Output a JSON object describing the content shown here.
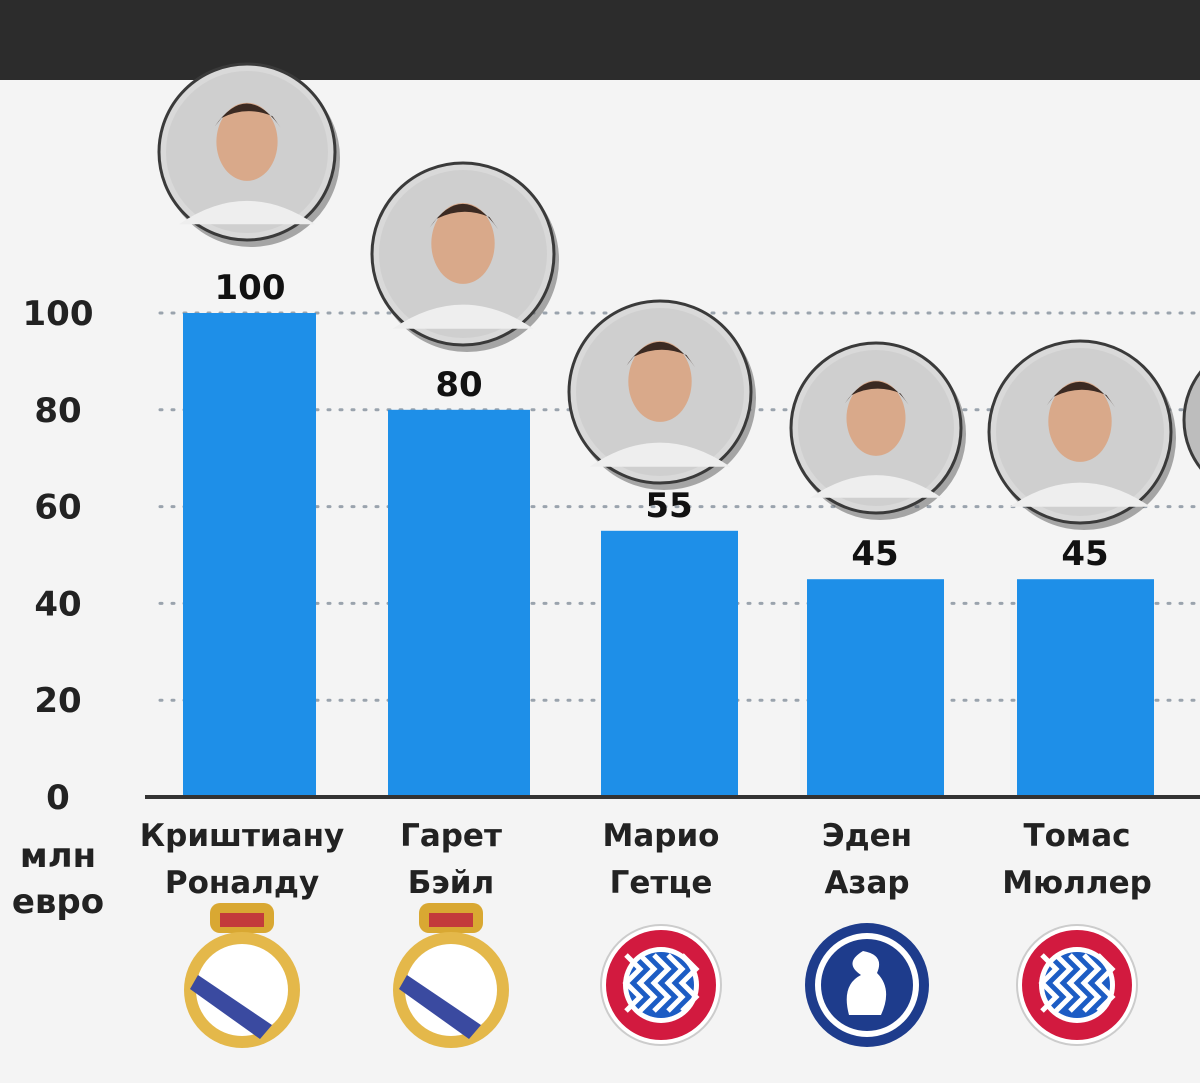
{
  "unit": {
    "line1": "млн",
    "line2": "евро"
  },
  "chart_data": {
    "type": "bar",
    "categories": [
      [
        "Криштиану",
        "Роналду"
      ],
      [
        "Гарет",
        "Бэйл"
      ],
      [
        "Марио",
        "Гетце"
      ],
      [
        "Эден",
        "Азар"
      ],
      [
        "Томас",
        "Мюллер"
      ]
    ],
    "values": [
      100,
      80,
      55,
      45,
      45
    ],
    "value_labels": [
      "100",
      "80",
      "55",
      "45",
      "45"
    ],
    "yticks": [
      0,
      20,
      40,
      60,
      80,
      100
    ],
    "ylim": [
      0,
      100
    ],
    "grid": "dotted horizontal",
    "clubs": [
      "real-madrid-crest-icon",
      "real-madrid-crest-icon",
      "bayern-munich-crest-icon",
      "chelsea-crest-icon",
      "bayern-munich-crest-icon"
    ],
    "colors": {
      "bar": "#1e8fe8",
      "axis": "#333333",
      "grid": "#9aa3ad"
    }
  }
}
